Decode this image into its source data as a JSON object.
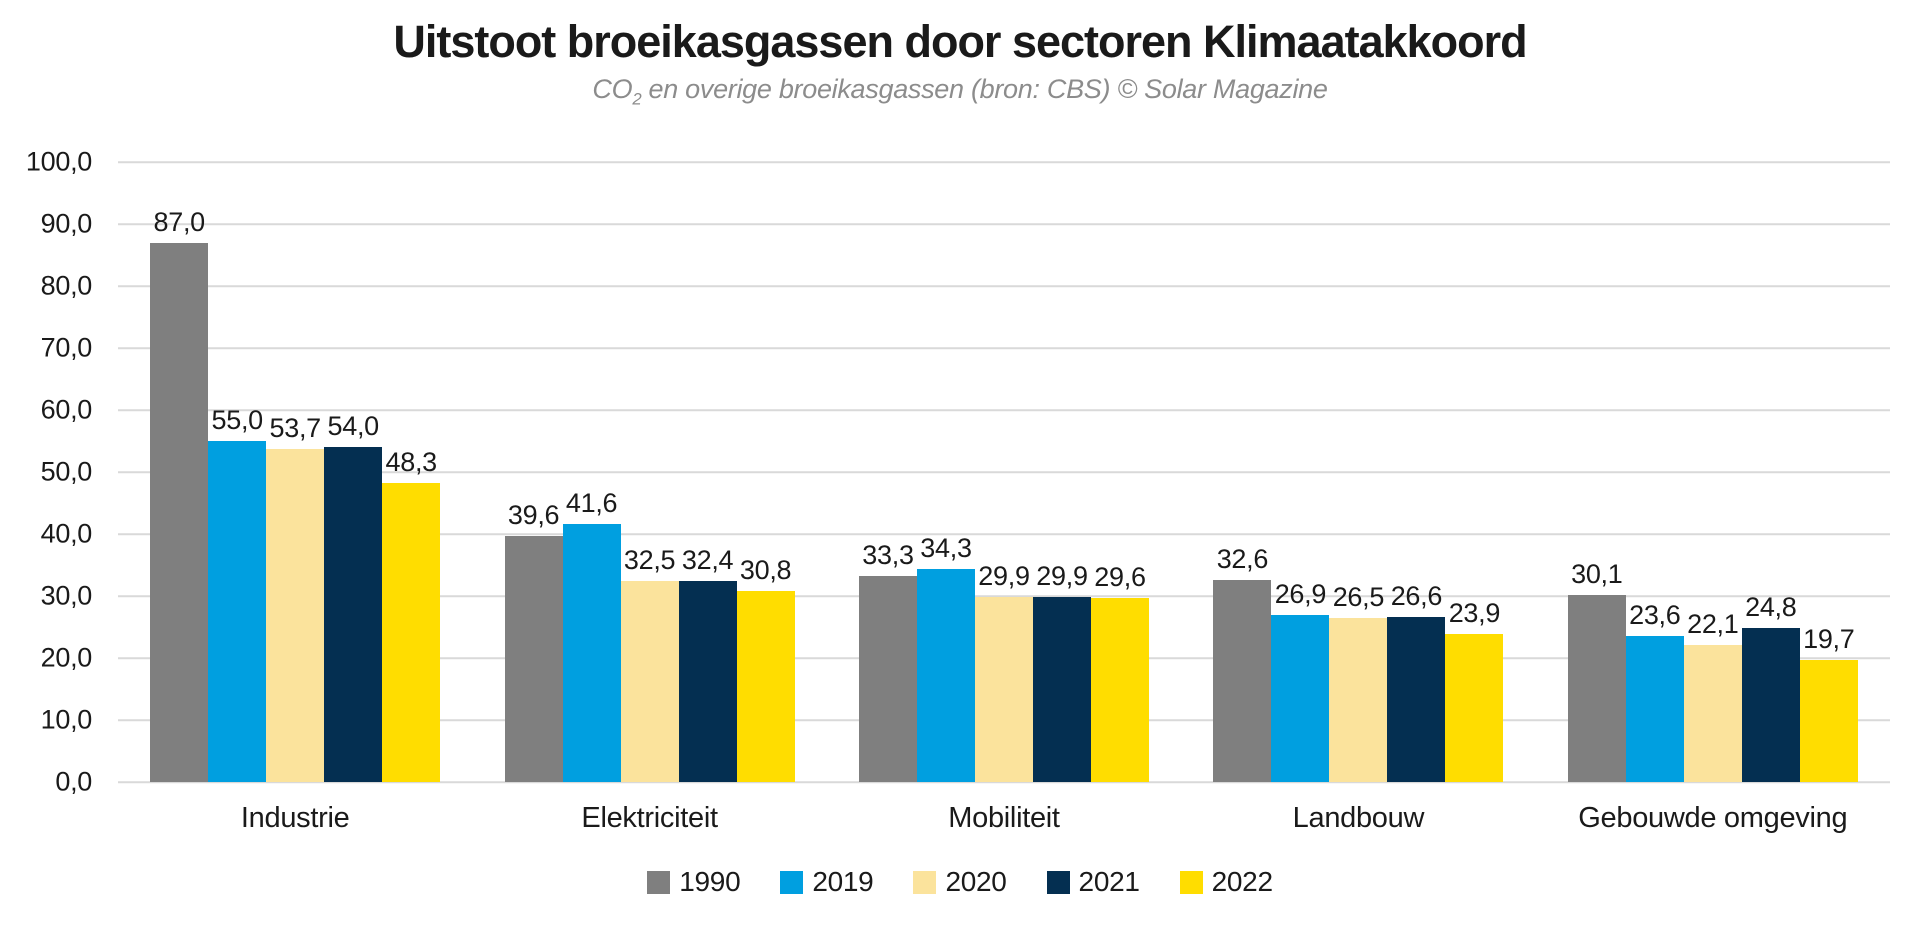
{
  "header": {
    "title": "Uitstoot broeikasgassen door sectoren Klimaatakkoord",
    "subtitle": {
      "pre": "CO",
      "sub": "2",
      "post": " en overige broeikasgassen (bron: CBS) © Solar Magazine"
    }
  },
  "chart_data": {
    "type": "bar",
    "title": "Uitstoot broeikasgassen door sectoren Klimaatakkoord",
    "subtitle": "CO2 en overige broeikasgassen (bron: CBS) © Solar Magazine",
    "categories": [
      "Industrie",
      "Elektriciteit",
      "Mobiliteit",
      "Landbouw",
      "Gebouwde omgeving"
    ],
    "series": [
      {
        "name": "1990",
        "color": "#7f7f7f",
        "values": [
          87.0,
          39.6,
          33.3,
          32.6,
          30.1
        ],
        "labels": [
          "87,0",
          "39,6",
          "33,3",
          "32,6",
          "30,1"
        ]
      },
      {
        "name": "2019",
        "color": "#009fe0",
        "values": [
          55.0,
          41.6,
          34.3,
          26.9,
          23.6
        ],
        "labels": [
          "55,0",
          "41,6",
          "34,3",
          "26,9",
          "23,6"
        ]
      },
      {
        "name": "2020",
        "color": "#fbe39c",
        "values": [
          53.7,
          32.5,
          29.9,
          26.5,
          22.1
        ],
        "labels": [
          "53,7",
          "32,5",
          "29,9",
          "26,5",
          "22,1"
        ]
      },
      {
        "name": "2021",
        "color": "#042f51",
        "values": [
          54.0,
          32.4,
          29.9,
          26.6,
          24.8
        ],
        "labels": [
          "54,0",
          "32,4",
          "29,9",
          "26,6",
          "24,8"
        ]
      },
      {
        "name": "2022",
        "color": "#ffdd00",
        "values": [
          48.3,
          30.8,
          29.6,
          23.9,
          19.7
        ],
        "labels": [
          "48,3",
          "30,8",
          "29,6",
          "23,9",
          "19,7"
        ]
      }
    ],
    "ylim": [
      0,
      100
    ],
    "ytick_step": 10,
    "ytick_labels_top_to_bottom": [
      "100,0",
      "90,0",
      "80,0",
      "70,0",
      "60,0",
      "50,0",
      "40,0",
      "30,0",
      "20,0",
      "10,0",
      "0,0"
    ],
    "grid": true,
    "legend_position": "bottom"
  },
  "style": {
    "background": "#ffffff",
    "grid_color": "#d9d9d9",
    "text_color": "#1a1a1a",
    "subtitle_color": "#8c8c8c"
  }
}
